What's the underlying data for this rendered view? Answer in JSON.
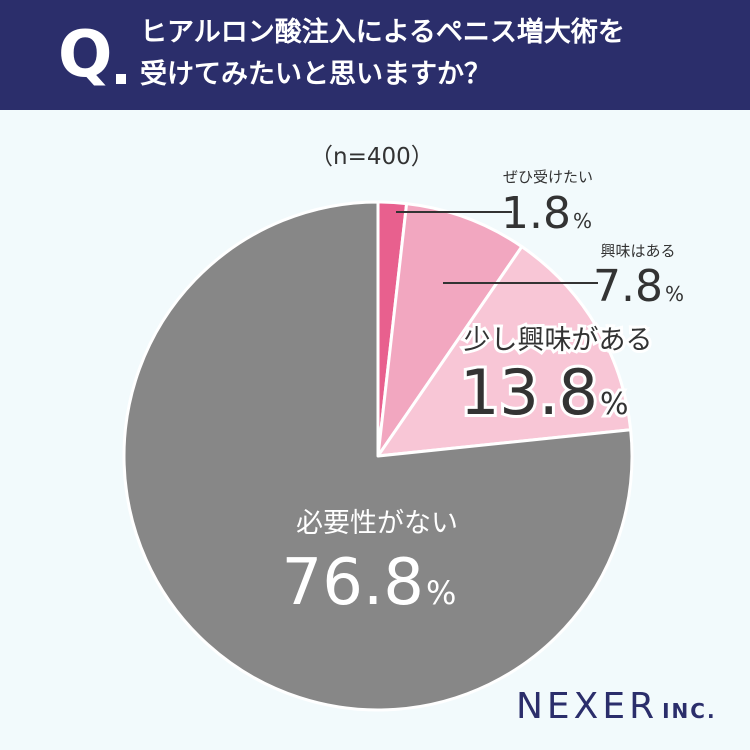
{
  "header": {
    "q_mark": "Q",
    "question_line1": "ヒアルロン酸注入によるペニス増大術を",
    "question_line2": "受けてみたいと思いますか？"
  },
  "sample_label": "（n=400）",
  "colors": {
    "header_bg": "#2b2e6b",
    "background": "#f2fafc",
    "slice_want": "#e8608e",
    "slice_interested": "#f2a7c0",
    "slice_slightly": "#f8c6d6",
    "slice_no": "#878787"
  },
  "chart_data": {
    "type": "pie",
    "slices": [
      {
        "label": "ぜひ受けたい",
        "value": 1.8,
        "display": "1.8",
        "unit": "%"
      },
      {
        "label": "興味はある",
        "value": 7.8,
        "display": "7.8",
        "unit": "%"
      },
      {
        "label": "少し興味がある",
        "value": 13.8,
        "display": "13.8",
        "unit": "%"
      },
      {
        "label": "必要性がない",
        "value": 76.8,
        "display": "76.8",
        "unit": "%"
      }
    ]
  },
  "logo": {
    "main": "NEXER",
    "sub": "INC."
  }
}
